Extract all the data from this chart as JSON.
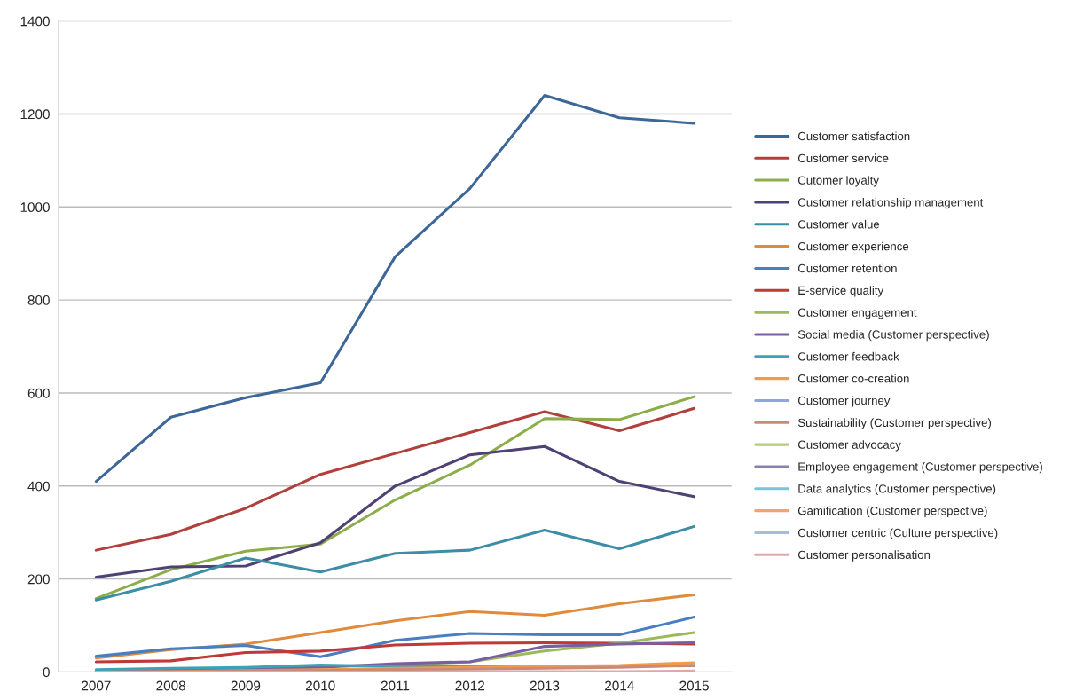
{
  "chart_data": {
    "type": "line",
    "categories": [
      "2007",
      "2008",
      "2009",
      "2010",
      "2011",
      "2012",
      "2013",
      "2014",
      "2015"
    ],
    "ylim": [
      0,
      1400
    ],
    "yticks": [
      0,
      200,
      400,
      600,
      800,
      1000,
      1200,
      1400
    ],
    "grid": "y",
    "legend": "right",
    "marker": "none",
    "series": [
      {
        "name": "Customer satisfaction",
        "color": "#3d6699",
        "values": [
          410,
          548,
          590,
          622,
          893,
          1040,
          1240,
          1192,
          1180
        ]
      },
      {
        "name": "Customer service",
        "color": "#b0403c",
        "values": [
          262,
          296,
          352,
          425,
          470,
          515,
          560,
          519,
          567
        ]
      },
      {
        "name": "Cutomer loyalty",
        "color": "#8cad4a",
        "values": [
          158,
          220,
          260,
          275,
          370,
          445,
          545,
          543,
          592
        ]
      },
      {
        "name": "Customer relationship management",
        "color": "#4e4274",
        "values": [
          204,
          226,
          228,
          278,
          400,
          467,
          485,
          410,
          377
        ]
      },
      {
        "name": "Customer value",
        "color": "#3c8ea7",
        "values": [
          155,
          195,
          245,
          215,
          255,
          262,
          305,
          265,
          313
        ]
      },
      {
        "name": "Customer experience",
        "color": "#e08b3c",
        "values": [
          30,
          48,
          60,
          85,
          110,
          130,
          122,
          147,
          166
        ]
      },
      {
        "name": "Customer retention",
        "color": "#4a7ec0",
        "values": [
          34,
          50,
          57,
          33,
          68,
          83,
          80,
          80,
          118
        ]
      },
      {
        "name": "E-service quality",
        "color": "#c0393a",
        "values": [
          22,
          24,
          42,
          45,
          58,
          62,
          63,
          62,
          60
        ]
      },
      {
        "name": "Customer engagement",
        "color": "#9bbb59",
        "values": [
          null,
          null,
          8,
          12,
          15,
          22,
          45,
          62,
          85
        ]
      },
      {
        "name": "Social media (Customer perspective)",
        "color": "#7a5fa0",
        "values": [
          2,
          4,
          6,
          10,
          18,
          22,
          55,
          60,
          63
        ]
      },
      {
        "name": "Customer feedback",
        "color": "#3ba3b8",
        "values": [
          5,
          8,
          10,
          15,
          12,
          12,
          12,
          12,
          14
        ]
      },
      {
        "name": "Customer co-creation",
        "color": "#f09a4a",
        "values": [
          0,
          1,
          3,
          5,
          8,
          10,
          12,
          14,
          20
        ]
      },
      {
        "name": "Customer journey",
        "color": "#8ea6d8",
        "values": [
          null,
          null,
          null,
          null,
          null,
          null,
          null,
          null,
          null
        ]
      },
      {
        "name": "Sustainability (Customer perspective)",
        "color": "#c98a7a",
        "values": [
          0,
          1,
          2,
          3,
          5,
          6,
          8,
          10,
          14
        ]
      },
      {
        "name": "Customer advocacy",
        "color": "#b5cc80",
        "values": [
          null,
          null,
          null,
          null,
          null,
          null,
          null,
          null,
          null
        ]
      },
      {
        "name": "Employee engagement (Customer perspective)",
        "color": "#8d7fb0",
        "values": [
          null,
          null,
          null,
          null,
          null,
          null,
          null,
          null,
          null
        ]
      },
      {
        "name": "Data analytics (Customer perspective)",
        "color": "#7cc3d6",
        "values": [
          null,
          null,
          null,
          null,
          null,
          null,
          null,
          null,
          null
        ]
      },
      {
        "name": "Gamification (Customer perspective)",
        "color": "#f7a070",
        "values": [
          null,
          null,
          null,
          null,
          null,
          null,
          null,
          null,
          null
        ]
      },
      {
        "name": "Customer centric (Culture perspective)",
        "color": "#a9bbd9",
        "values": [
          null,
          null,
          null,
          null,
          null,
          null,
          null,
          null,
          null
        ]
      },
      {
        "name": "Customer personalisation",
        "color": "#e0a8a8",
        "values": [
          0,
          0,
          0,
          0,
          0,
          1,
          1,
          1,
          2
        ]
      }
    ]
  }
}
